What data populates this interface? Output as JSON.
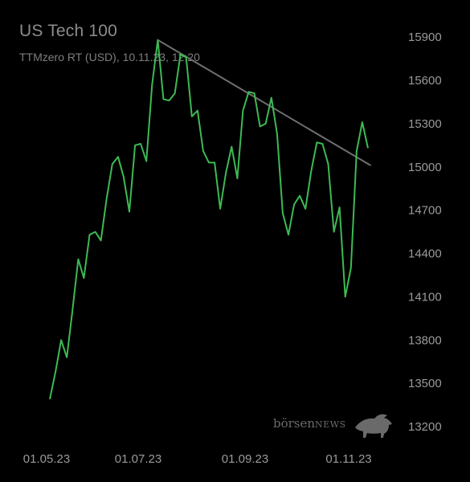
{
  "header": {
    "title": "US Tech 100",
    "subtitle": "TTMzero RT (USD), 10.11.23, 12:20"
  },
  "logo": {
    "name": "börsen",
    "suffix": "NEWS",
    "icon": "bull-icon"
  },
  "colors": {
    "background": "#000000",
    "line": "#3dba54",
    "trendline": "#6e6e6e",
    "text": "#8a8a8a"
  },
  "chart_data": {
    "type": "line",
    "title": "US Tech 100",
    "subtitle": "TTMzero RT (USD), 10.11.23, 12:20",
    "ylim": [
      13150,
      15990
    ],
    "yticks": [
      15900,
      15600,
      15300,
      15000,
      14700,
      14400,
      14100,
      13800,
      13500,
      13200
    ],
    "xticks": [
      "01.05.23",
      "01.07.23",
      "01.09.23",
      "01.11.23"
    ],
    "grid": false,
    "series": [
      {
        "values": [
          13390,
          13580,
          13800,
          13680,
          14010,
          14360,
          14230,
          14530,
          14550,
          14490,
          14780,
          15020,
          15070,
          14930,
          14690,
          15150,
          15160,
          15040,
          15570,
          15880,
          15470,
          15460,
          15510,
          15780,
          15760,
          15350,
          15390,
          15110,
          15030,
          15030,
          14710,
          14960,
          15140,
          14920,
          15390,
          15520,
          15510,
          15280,
          15300,
          15480,
          15230,
          14680,
          14530,
          14740,
          14800,
          14710,
          14970,
          15170,
          15160,
          15020,
          14550,
          14720,
          14100,
          14300,
          15110,
          15310,
          15130
        ]
      }
    ],
    "trendline": {
      "from": [
        19,
        15880
      ],
      "to": [
        56.5,
        15010
      ]
    }
  }
}
